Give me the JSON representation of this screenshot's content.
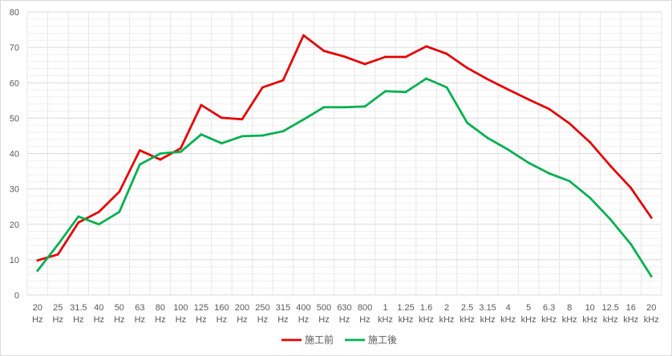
{
  "chart_data": {
    "type": "line",
    "title": "",
    "xlabel": "",
    "ylabel": "",
    "ylim": [
      0,
      80
    ],
    "yticks": [
      0,
      10,
      20,
      30,
      40,
      50,
      60,
      70,
      80
    ],
    "grid": true,
    "legend": "bottom-center",
    "categories": [
      [
        "20",
        "Hz"
      ],
      [
        "25",
        "Hz"
      ],
      [
        "31.5",
        "Hz"
      ],
      [
        "40",
        "Hz"
      ],
      [
        "50",
        "Hz"
      ],
      [
        "63",
        "Hz"
      ],
      [
        "80",
        "Hz"
      ],
      [
        "100",
        "Hz"
      ],
      [
        "125",
        "Hz"
      ],
      [
        "160",
        "Hz"
      ],
      [
        "200",
        "Hz"
      ],
      [
        "250",
        "Hz"
      ],
      [
        "315",
        "Hz"
      ],
      [
        "400",
        "Hz"
      ],
      [
        "500",
        "Hz"
      ],
      [
        "630",
        "Hz"
      ],
      [
        "800",
        "Hz"
      ],
      [
        "1",
        "kHz"
      ],
      [
        "1.25",
        "kHz"
      ],
      [
        "1.6",
        "kHz"
      ],
      [
        "2",
        "kHz"
      ],
      [
        "2.5",
        "kHz"
      ],
      [
        "3.15",
        "kHz"
      ],
      [
        "4",
        "kHz"
      ],
      [
        "5",
        "kHz"
      ],
      [
        "6.3",
        "kHz"
      ],
      [
        "8",
        "kHz"
      ],
      [
        "10",
        "kHz"
      ],
      [
        "12.5",
        "kHz"
      ],
      [
        "16",
        "kHz"
      ],
      [
        "20",
        "kHz"
      ]
    ],
    "series": [
      {
        "name": "施工前",
        "color": "#e60000",
        "values": [
          9.8,
          11.5,
          20.5,
          23.5,
          29.2,
          40.9,
          38.3,
          41.5,
          53.7,
          50.1,
          49.7,
          58.7,
          60.7,
          73.4,
          69.0,
          67.4,
          65.3,
          67.3,
          67.3,
          70.3,
          68.2,
          64.2,
          61.0,
          58.1,
          55.3,
          52.6,
          48.5,
          43.2,
          36.5,
          30.3,
          21.9
        ]
      },
      {
        "name": "施工後",
        "color": "#00b050",
        "values": [
          6.9,
          14.3,
          22.2,
          20.0,
          23.5,
          36.9,
          40.0,
          40.5,
          45.4,
          42.9,
          44.9,
          45.1,
          46.3,
          49.6,
          53.1,
          53.1,
          53.3,
          57.6,
          57.4,
          61.2,
          58.7,
          48.7,
          44.4,
          41.1,
          37.4,
          34.4,
          32.2,
          27.5,
          21.4,
          14.4,
          5.3
        ]
      }
    ]
  }
}
